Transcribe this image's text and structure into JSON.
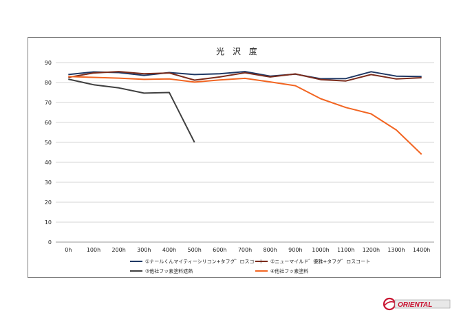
{
  "chart_data": {
    "type": "line",
    "title": "光 沢 度",
    "xlabel": "",
    "ylabel": "",
    "categories": [
      "0h",
      "100h",
      "200h",
      "300h",
      "400h",
      "500h",
      "600h",
      "700h",
      "800h",
      "900h",
      "1000h",
      "1100h",
      "1200h",
      "1300h",
      "1400h"
    ],
    "yticks": [
      "0",
      "10",
      "20",
      "30",
      "40",
      "50",
      "60",
      "70",
      "80",
      "90"
    ],
    "ylim": [
      0,
      90
    ],
    "grid": true,
    "legend_position": "bottom",
    "series": [
      {
        "name": "①ナールくんマイティーシリコン+タフグ゛ロスコート",
        "color": "#1f3864",
        "values": [
          84,
          85.3,
          85,
          83.6,
          85,
          84,
          84.4,
          85.5,
          83.2,
          84.2,
          81.9,
          82,
          85.4,
          83.2,
          83
        ]
      },
      {
        "name": "②ニューマイルド゛優雅+タフグ゛ロスコート",
        "color": "#7b2c1c",
        "values": [
          82.6,
          84.8,
          85.5,
          84.4,
          84.8,
          81.2,
          82.8,
          84.9,
          82.8,
          84.3,
          81.5,
          80.8,
          84,
          81.8,
          82.4
        ]
      },
      {
        "name": "③他社フッ素塗料遮熱",
        "color": "#404040",
        "values": [
          81.7,
          78.9,
          77.3,
          74.7,
          75,
          50,
          null,
          null,
          null,
          null,
          null,
          null,
          null,
          null,
          null
        ]
      },
      {
        "name": "④他社フッ素塗料",
        "color": "#f26522",
        "values": [
          83,
          82.6,
          82.2,
          81.6,
          81.8,
          80.2,
          81.3,
          82.1,
          80.3,
          78.4,
          71.9,
          67.5,
          64.3,
          56.2,
          44
        ]
      }
    ]
  },
  "logo": {
    "text": "ORIENTAL",
    "color": "#c8102e"
  }
}
